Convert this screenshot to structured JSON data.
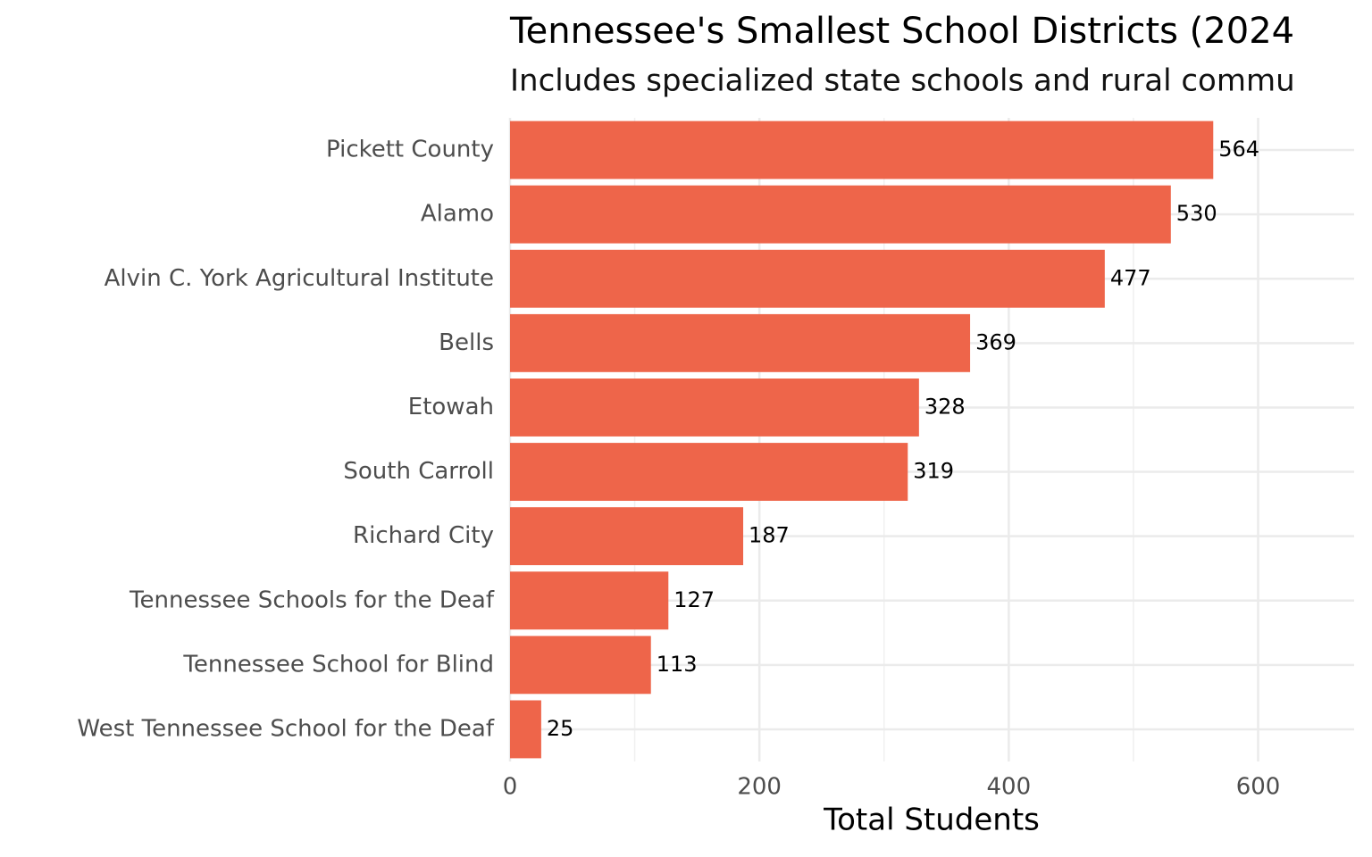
{
  "chart_data": {
    "type": "bar",
    "orientation": "horizontal",
    "title": "Tennessee's Smallest School Districts (2024",
    "subtitle": "Includes specialized state schools and rural commu",
    "xlabel": "Total Students",
    "categories": [
      "Pickett County",
      "Alamo",
      "Alvin C. York Agricultural Institute",
      "Bells",
      "Etowah",
      "South Carroll",
      "Richard City",
      "Tennessee Schools for the Deaf",
      "Tennessee School for Blind",
      "West Tennessee School for the Deaf"
    ],
    "values": [
      564,
      530,
      477,
      369,
      328,
      319,
      187,
      127,
      113,
      25
    ],
    "color": "#ee654a",
    "xlim": [
      0,
      677
    ],
    "xticks": [
      0,
      200,
      400,
      600
    ],
    "grid": true
  }
}
